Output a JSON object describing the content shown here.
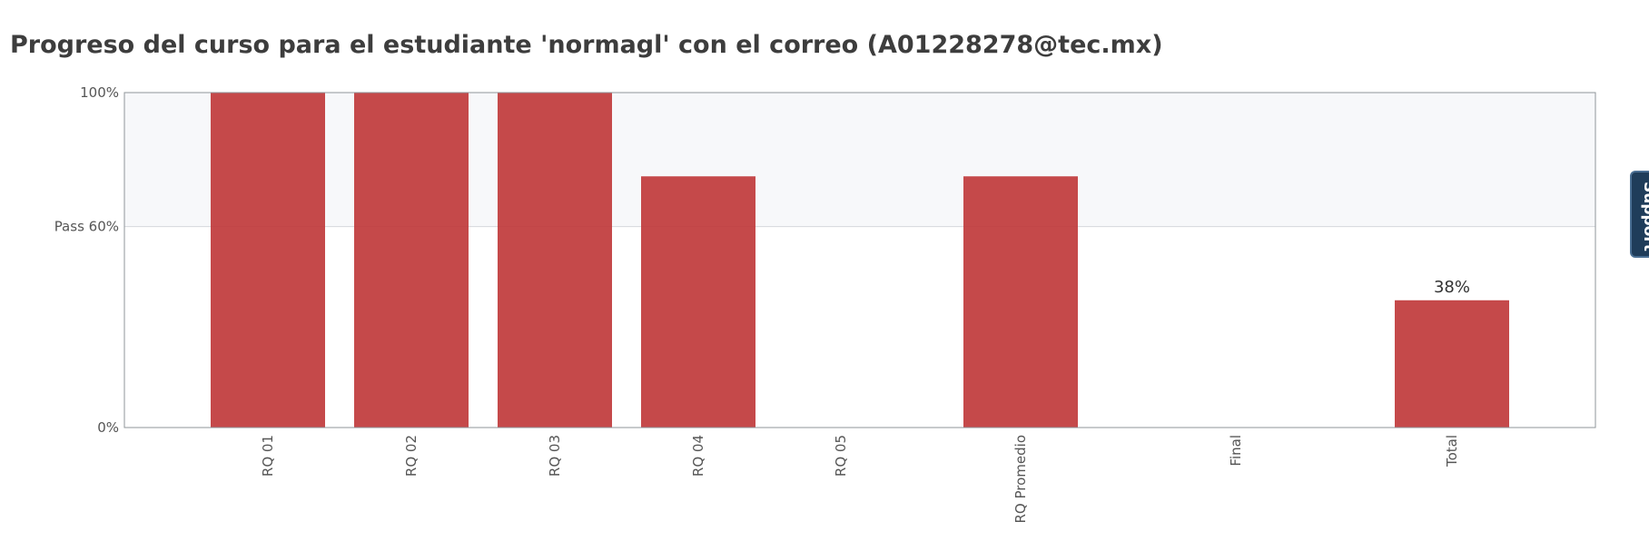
{
  "page_title": "Progreso del curso para el estudiante 'normagl' con el correo (A01228278@tec.mx)",
  "support_label": "Support",
  "chart_data": {
    "type": "bar",
    "categories": [
      "RQ 01",
      "RQ 02",
      "RQ 03",
      "RQ 04",
      "RQ 05",
      "RQ Promedio",
      "Final",
      "Total"
    ],
    "values": [
      100,
      100,
      100,
      75,
      0,
      75,
      0,
      38
    ],
    "ylim": [
      0,
      100
    ],
    "yticks": [
      {
        "value": 0,
        "label": "0%"
      },
      {
        "value": 60,
        "label": "Pass 60%"
      },
      {
        "value": 100,
        "label": "100%"
      }
    ],
    "pass_threshold": 60,
    "data_labels": [
      {
        "category": "Total",
        "label": "38%"
      }
    ],
    "bar_color": "#c0393b",
    "above_pass_band_color": "#f7f8fa",
    "grid": false,
    "legend": "none",
    "title": "",
    "xlabel": "",
    "ylabel": ""
  }
}
